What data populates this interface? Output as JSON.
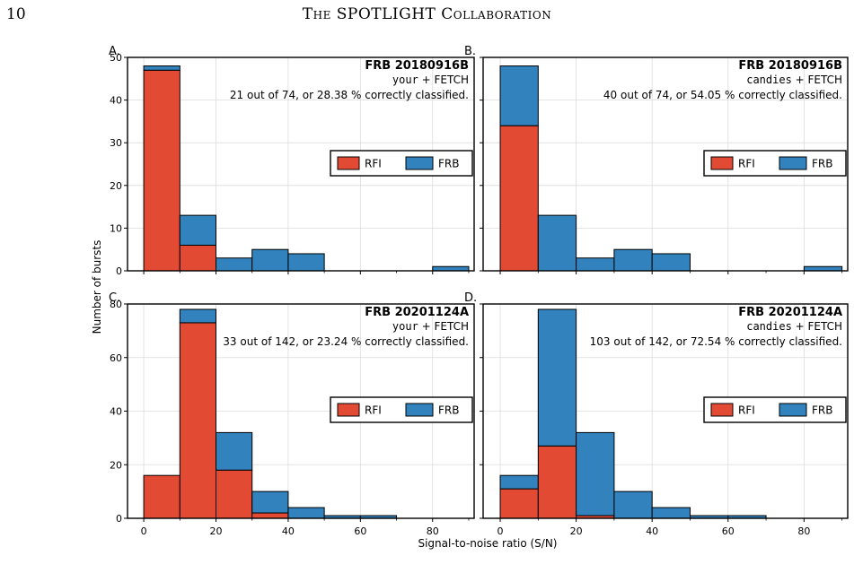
{
  "header": {
    "page_number": "10",
    "running_title": "The SPOTLIGHT Collaboration"
  },
  "colors": {
    "rfi": "#e34a33",
    "frb": "#3182bd"
  },
  "chart_data": [
    {
      "type": "bar",
      "panel_letter": "A.",
      "title": "FRB 20180916B",
      "subtitle_mono": "your",
      "subtitle_rest": " + FETCH",
      "summary": "21 out of 74, or 28.38 % correctly classified.",
      "bin_edges": [
        0,
        10,
        20,
        30,
        40,
        50,
        60,
        70,
        80,
        90
      ],
      "series": [
        {
          "name": "RFI",
          "values": [
            47,
            6,
            0,
            0,
            0,
            0,
            0,
            0,
            0
          ]
        },
        {
          "name": "FRB",
          "values": [
            1,
            7,
            3,
            5,
            4,
            0,
            0,
            0,
            1
          ]
        }
      ],
      "ylim": [
        0,
        50
      ],
      "yticks": [
        "0",
        "10",
        "20",
        "30",
        "40",
        "50"
      ],
      "legend": [
        "RFI",
        "FRB"
      ]
    },
    {
      "type": "bar",
      "panel_letter": "B.",
      "title": "FRB 20180916B",
      "subtitle_mono": "candies",
      "subtitle_rest": " + FETCH",
      "summary": "40 out of 74, or 54.05 % correctly classified.",
      "bin_edges": [
        0,
        10,
        20,
        30,
        40,
        50,
        60,
        70,
        80,
        90
      ],
      "series": [
        {
          "name": "RFI",
          "values": [
            34,
            0,
            0,
            0,
            0,
            0,
            0,
            0,
            0
          ]
        },
        {
          "name": "FRB",
          "values": [
            14,
            13,
            3,
            5,
            4,
            0,
            0,
            0,
            1
          ]
        }
      ],
      "ylim": [
        0,
        50
      ],
      "legend": [
        "RFI",
        "FRB"
      ]
    },
    {
      "type": "bar",
      "panel_letter": "C.",
      "title": "FRB 20201124A",
      "subtitle_mono": "your",
      "subtitle_rest": " + FETCH",
      "summary": "33 out of 142, or 23.24 % correctly classified.",
      "bin_edges": [
        0,
        10,
        20,
        30,
        40,
        50,
        60,
        70,
        80,
        90
      ],
      "series": [
        {
          "name": "RFI",
          "values": [
            16,
            73,
            18,
            2,
            0,
            0,
            0,
            0,
            0
          ]
        },
        {
          "name": "FRB",
          "values": [
            0,
            5,
            14,
            8,
            4,
            1,
            1,
            0,
            0
          ]
        }
      ],
      "ylim": [
        0,
        80
      ],
      "yticks": [
        "0",
        "20",
        "40",
        "60",
        "80"
      ],
      "legend": [
        "RFI",
        "FRB"
      ]
    },
    {
      "type": "bar",
      "panel_letter": "D.",
      "title": "FRB 20201124A",
      "subtitle_mono": "candies",
      "subtitle_rest": " + FETCH",
      "summary": "103 out of 142, or 72.54 % correctly classified.",
      "bin_edges": [
        0,
        10,
        20,
        30,
        40,
        50,
        60,
        70,
        80,
        90
      ],
      "series": [
        {
          "name": "RFI",
          "values": [
            11,
            27,
            1,
            0,
            0,
            0,
            0,
            0,
            0
          ]
        },
        {
          "name": "FRB",
          "values": [
            5,
            51,
            31,
            10,
            4,
            1,
            1,
            0,
            0
          ]
        }
      ],
      "ylim": [
        0,
        80
      ],
      "legend": [
        "RFI",
        "FRB"
      ]
    }
  ],
  "axes": {
    "xlabel": "Signal-to-noise ratio (S/N)",
    "ylabel": "Number of bursts",
    "xticks": [
      "0",
      "20",
      "40",
      "60",
      "80"
    ]
  }
}
